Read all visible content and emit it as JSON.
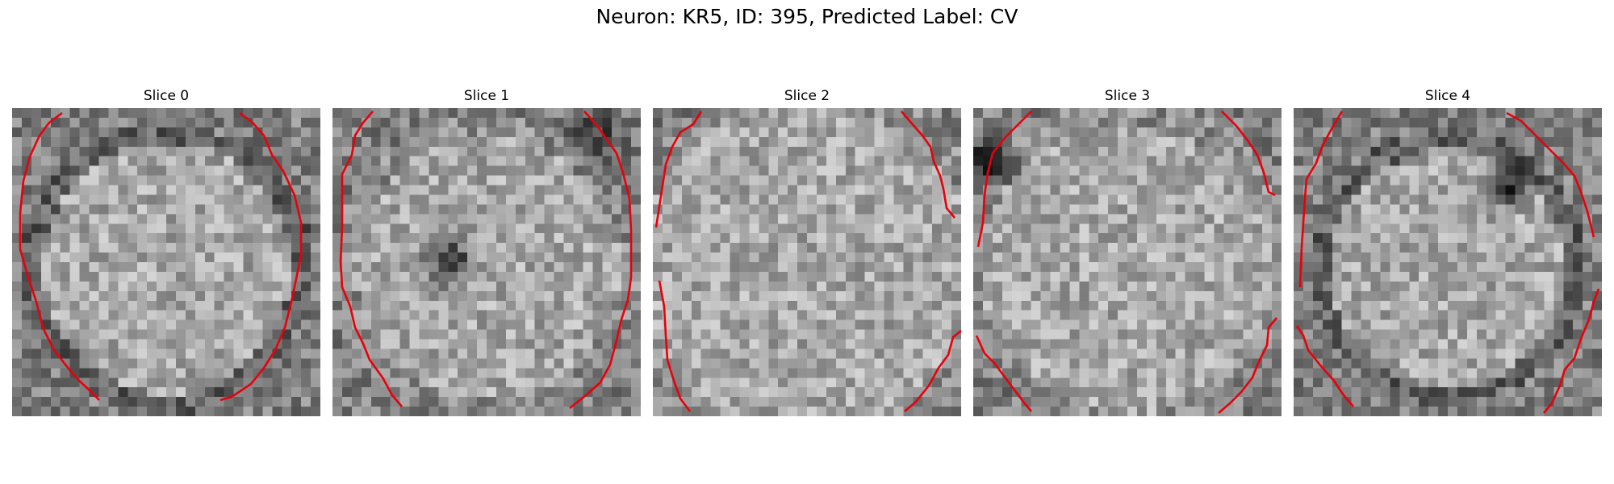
{
  "figure": {
    "title": "Neuron: KR5, ID: 395, Predicted Label: CV",
    "colormap": "gray",
    "contour_color": "#e8000b"
  },
  "slices": [
    {
      "title": "Slice 0"
    },
    {
      "title": "Slice 1"
    },
    {
      "title": "Slice 2"
    },
    {
      "title": "Slice 3"
    },
    {
      "title": "Slice 4"
    }
  ]
}
